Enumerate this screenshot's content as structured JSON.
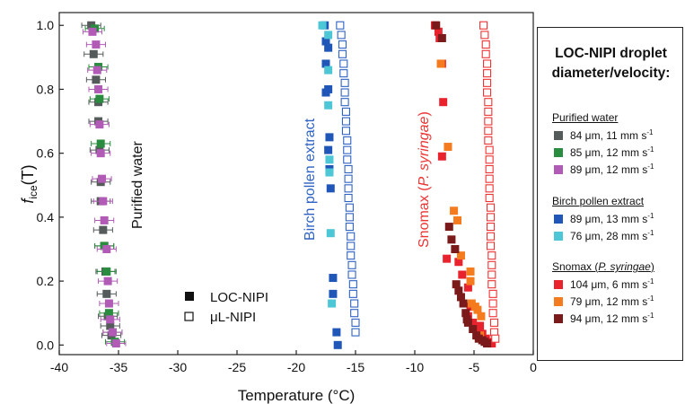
{
  "chart_data": {
    "type": "scatter",
    "xlabel": "Temperature (°C)",
    "ylabel_main": "f",
    "ylabel_sub": "ice",
    "ylabel_tail": "(T)",
    "xlim": [
      -40,
      0
    ],
    "ylim": [
      -0.03,
      1.04
    ],
    "x_ticks": [
      -40,
      -35,
      -30,
      -25,
      -20,
      -15,
      -10,
      -5,
      0
    ],
    "y_ticks": [
      0.0,
      0.2,
      0.4,
      0.6,
      0.8,
      1.0
    ],
    "y_tick_labels": [
      "0.0",
      "0.2",
      "0.4",
      "0.6",
      "0.8",
      "1.0"
    ],
    "grid": false,
    "annotations": [
      {
        "text": "Purified water",
        "color": "#111111"
      },
      {
        "text": "Birch pollen extract",
        "color": "#2e62c4"
      },
      {
        "text_plain": "Snomax (",
        "text_italic": "P. syringae",
        "text_end": ")",
        "color": "#ee3333"
      }
    ],
    "inner_legend": [
      {
        "label": "LOC-NIPI",
        "marker": "filled"
      },
      {
        "label": "μL-NIPI",
        "marker": "open"
      }
    ],
    "series": [
      {
        "name": "84 µm, 11 mm s-1",
        "group": "Purified water",
        "color": "#555b5b",
        "marker": "filled",
        "xerr": 0.8,
        "points": [
          [
            -37.3,
            1.0
          ],
          [
            -37.1,
            0.91
          ],
          [
            -36.9,
            0.83
          ],
          [
            -36.7,
            0.76
          ],
          [
            -36.7,
            0.7
          ],
          [
            -36.6,
            0.61
          ],
          [
            -36.5,
            0.51
          ],
          [
            -36.5,
            0.45
          ],
          [
            -36.3,
            0.36
          ],
          [
            -36.2,
            0.31
          ],
          [
            -36.1,
            0.23
          ],
          [
            -36.0,
            0.16
          ],
          [
            -35.9,
            0.09
          ],
          [
            -35.7,
            0.06
          ],
          [
            -35.6,
            0.03
          ]
        ]
      },
      {
        "name": "85 µm, 12 mm s-1",
        "group": "Purified water",
        "color": "#2a8c3e",
        "marker": "filled",
        "xerr": 0.8,
        "points": [
          [
            -37.0,
            0.99
          ],
          [
            -36.7,
            0.87
          ],
          [
            -36.6,
            0.77
          ],
          [
            -36.5,
            0.63
          ],
          [
            -36.2,
            0.31
          ],
          [
            -36.0,
            0.23
          ],
          [
            -35.8,
            0.1
          ],
          [
            -35.5,
            0.04
          ],
          [
            -35.3,
            0.01
          ]
        ]
      },
      {
        "name": "89 µm, 12 mm s-1",
        "group": "Purified water",
        "color": "#b15bb6",
        "marker": "filled",
        "xerr": 0.8,
        "points": [
          [
            -37.2,
            0.98
          ],
          [
            -36.9,
            0.94
          ],
          [
            -36.8,
            0.86
          ],
          [
            -36.7,
            0.8
          ],
          [
            -36.6,
            0.69
          ],
          [
            -36.5,
            0.6
          ],
          [
            -36.4,
            0.52
          ],
          [
            -36.3,
            0.45
          ],
          [
            -36.2,
            0.39
          ],
          [
            -36.0,
            0.3
          ],
          [
            -35.9,
            0.2
          ],
          [
            -35.8,
            0.13
          ],
          [
            -35.7,
            0.08
          ],
          [
            -35.5,
            0.04
          ],
          [
            -35.2,
            0.005
          ]
        ]
      },
      {
        "name": "89 µm, 13 mm s-1",
        "group": "Birch pollen extract",
        "color": "#1f56b8",
        "marker": "filled",
        "points": [
          [
            -17.6,
            1.0
          ],
          [
            -17.5,
            0.95
          ],
          [
            -17.3,
            0.93
          ],
          [
            -17.5,
            0.88
          ],
          [
            -17.3,
            0.8
          ],
          [
            -17.5,
            0.79
          ],
          [
            -17.2,
            0.65
          ],
          [
            -17.3,
            0.61
          ],
          [
            -17.2,
            0.55
          ],
          [
            -17.1,
            0.49
          ],
          [
            -16.9,
            0.21
          ],
          [
            -16.9,
            0.16
          ],
          [
            -16.6,
            0.04
          ],
          [
            -16.5,
            0.0
          ]
        ]
      },
      {
        "name": "76 µm, 28 mm s-1",
        "group": "Birch pollen extract",
        "color": "#4dc7d6",
        "marker": "filled",
        "points": [
          [
            -17.8,
            1.0
          ],
          [
            -17.3,
            0.97
          ],
          [
            -17.3,
            0.86
          ],
          [
            -17.3,
            0.75
          ],
          [
            -17.2,
            0.58
          ],
          [
            -17.2,
            0.54
          ],
          [
            -17.1,
            0.35
          ],
          [
            -17.0,
            0.13
          ]
        ]
      },
      {
        "name": "μL-NIPI birch",
        "group": "Birch pollen extract",
        "color": "#2e62c4",
        "marker": "open",
        "points": [
          [
            -16.3,
            1.0
          ],
          [
            -16.2,
            0.97
          ],
          [
            -16.1,
            0.94
          ],
          [
            -16.1,
            0.91
          ],
          [
            -16.0,
            0.88
          ],
          [
            -16.0,
            0.85
          ],
          [
            -15.9,
            0.82
          ],
          [
            -15.9,
            0.79
          ],
          [
            -15.9,
            0.76
          ],
          [
            -15.8,
            0.73
          ],
          [
            -15.8,
            0.7
          ],
          [
            -15.8,
            0.67
          ],
          [
            -15.7,
            0.64
          ],
          [
            -15.7,
            0.61
          ],
          [
            -15.7,
            0.58
          ],
          [
            -15.6,
            0.55
          ],
          [
            -15.6,
            0.52
          ],
          [
            -15.6,
            0.49
          ],
          [
            -15.6,
            0.46
          ],
          [
            -15.5,
            0.43
          ],
          [
            -15.5,
            0.4
          ],
          [
            -15.5,
            0.37
          ],
          [
            -15.4,
            0.34
          ],
          [
            -15.4,
            0.31
          ],
          [
            -15.4,
            0.28
          ],
          [
            -15.3,
            0.25
          ],
          [
            -15.3,
            0.22
          ],
          [
            -15.2,
            0.19
          ],
          [
            -15.2,
            0.16
          ],
          [
            -15.1,
            0.13
          ],
          [
            -15.1,
            0.1
          ],
          [
            -15.0,
            0.07
          ],
          [
            -15.0,
            0.04
          ]
        ]
      },
      {
        "name": "104 µm, 6 mm s-1",
        "group": "Snomax (P. syringae)",
        "color": "#e8232e",
        "marker": "filled",
        "points": [
          [
            -8.3,
            1.0
          ],
          [
            -8.0,
            0.98
          ],
          [
            -7.9,
            0.96
          ],
          [
            -7.7,
            0.88
          ],
          [
            -7.6,
            0.76
          ],
          [
            -7.7,
            0.59
          ],
          [
            -7.3,
            0.27
          ],
          [
            -6.3,
            0.26
          ],
          [
            -6.0,
            0.22
          ],
          [
            -5.5,
            0.18
          ],
          [
            -5.3,
            0.12
          ],
          [
            -5.5,
            0.09
          ],
          [
            -5.1,
            0.07
          ],
          [
            -4.7,
            0.06
          ],
          [
            -4.5,
            0.06
          ],
          [
            -4.6,
            0.04
          ],
          [
            -4.3,
            0.035
          ],
          [
            -4.0,
            0.02
          ],
          [
            -3.8,
            0.01
          ],
          [
            -3.5,
            0.005
          ]
        ]
      },
      {
        "name": "79 µm, 12 mm s-1",
        "group": "Snomax (P. syringae)",
        "color": "#f47b1e",
        "marker": "filled",
        "points": [
          [
            -7.8,
            0.88
          ],
          [
            -7.2,
            0.62
          ],
          [
            -6.7,
            0.42
          ],
          [
            -6.4,
            0.39
          ],
          [
            -6.1,
            0.28
          ],
          [
            -5.3,
            0.23
          ],
          [
            -5.3,
            0.2
          ],
          [
            -5.2,
            0.13
          ],
          [
            -4.9,
            0.12
          ],
          [
            -4.7,
            0.11
          ],
          [
            -4.4,
            0.09
          ],
          [
            -4.5,
            0.03
          ]
        ]
      },
      {
        "name": "94 µm, 12 mm s-1",
        "group": "Snomax (P. syringae)",
        "color": "#7a1a1a",
        "marker": "filled",
        "points": [
          [
            -8.2,
            1.0
          ],
          [
            -7.7,
            0.96
          ],
          [
            -7.1,
            0.37
          ],
          [
            -6.9,
            0.33
          ],
          [
            -6.6,
            0.3
          ],
          [
            -6.5,
            0.19
          ],
          [
            -6.3,
            0.17
          ],
          [
            -6.1,
            0.15
          ],
          [
            -5.9,
            0.13
          ],
          [
            -5.7,
            0.1
          ],
          [
            -5.6,
            0.08
          ],
          [
            -5.5,
            0.07
          ],
          [
            -5.1,
            0.05
          ],
          [
            -4.8,
            0.03
          ],
          [
            -4.6,
            0.02
          ],
          [
            -4.3,
            0.015
          ],
          [
            -4.1,
            0.01
          ],
          [
            -3.9,
            0.005
          ]
        ]
      },
      {
        "name": "μL-NIPI snomax",
        "group": "Snomax (P. syringae)",
        "color": "#ee3333",
        "marker": "open",
        "points": [
          [
            -4.2,
            1.0
          ],
          [
            -4.1,
            0.97
          ],
          [
            -4.0,
            0.94
          ],
          [
            -4.0,
            0.91
          ],
          [
            -3.9,
            0.88
          ],
          [
            -3.9,
            0.85
          ],
          [
            -3.9,
            0.82
          ],
          [
            -3.9,
            0.79
          ],
          [
            -3.8,
            0.76
          ],
          [
            -3.8,
            0.73
          ],
          [
            -3.8,
            0.7
          ],
          [
            -3.8,
            0.67
          ],
          [
            -3.8,
            0.64
          ],
          [
            -3.7,
            0.61
          ],
          [
            -3.7,
            0.58
          ],
          [
            -3.7,
            0.55
          ],
          [
            -3.7,
            0.52
          ],
          [
            -3.7,
            0.49
          ],
          [
            -3.7,
            0.46
          ],
          [
            -3.6,
            0.43
          ],
          [
            -3.6,
            0.4
          ],
          [
            -3.6,
            0.37
          ],
          [
            -3.6,
            0.34
          ],
          [
            -3.6,
            0.31
          ],
          [
            -3.5,
            0.28
          ],
          [
            -3.5,
            0.25
          ],
          [
            -3.5,
            0.22
          ],
          [
            -3.5,
            0.19
          ],
          [
            -3.4,
            0.16
          ],
          [
            -3.4,
            0.13
          ],
          [
            -3.4,
            0.1
          ],
          [
            -3.3,
            0.07
          ],
          [
            -3.3,
            0.04
          ],
          [
            -3.2,
            0.02
          ]
        ]
      }
    ]
  },
  "legend": {
    "title_line1": "LOC-NIPI droplet",
    "title_line2": "diameter/velocity:",
    "groups": [
      {
        "title": "Purified water",
        "items": [
          {
            "main": "84 μm, 11 mm s",
            "sup": "-1",
            "color": "#555b5b"
          },
          {
            "main": "85 μm, 12 mm s",
            "sup": "-1",
            "color": "#2a8c3e"
          },
          {
            "main": "89 μm, 12 mm s",
            "sup": "-1",
            "color": "#b15bb6"
          }
        ]
      },
      {
        "title": "Birch pollen extract",
        "items": [
          {
            "main": "89 μm, 13 mm s",
            "sup": "-1",
            "color": "#1f56b8"
          },
          {
            "main": "76 μm, 28 mm s",
            "sup": "-1",
            "color": "#4dc7d6"
          }
        ]
      },
      {
        "title_plain": "Snomax (",
        "title_italic": "P. syringae",
        "title_end": ")",
        "items": [
          {
            "main": "104 μm, 6 mm s",
            "sup": "-1",
            "color": "#e8232e"
          },
          {
            "main": "79 μm, 12 mm s",
            "sup": "-1",
            "color": "#f47b1e"
          },
          {
            "main": "94 μm, 12 mm s",
            "sup": "-1",
            "color": "#7a1a1a"
          }
        ]
      }
    ]
  }
}
